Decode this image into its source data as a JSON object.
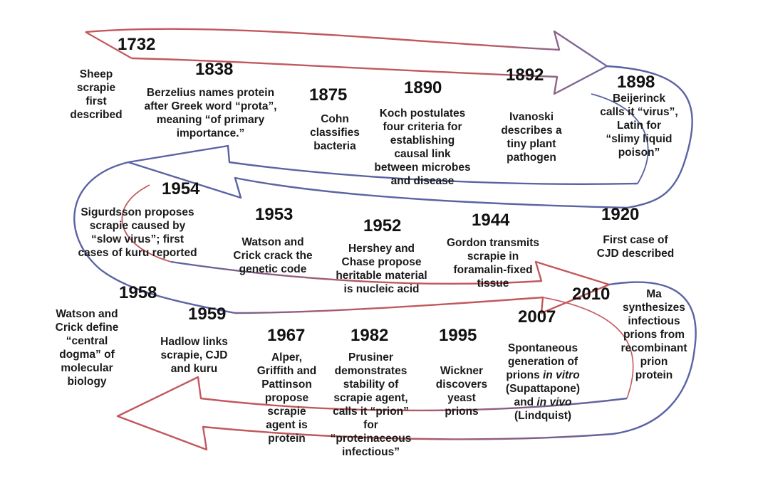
{
  "colors": {
    "arrow_red": "#c2585d",
    "arrow_blue": "#5a63a3",
    "text": "#1a1a1a"
  },
  "events": [
    {
      "id": "e1732",
      "year": "1732",
      "lines": [
        "Sheep",
        "scrapie",
        "first",
        "described"
      ]
    },
    {
      "id": "e1838",
      "year": "1838",
      "lines": [
        "Berzelius names protein",
        "after Greek word “prota”,",
        "meaning “of primary",
        "importance.”"
      ]
    },
    {
      "id": "e1875",
      "year": "1875",
      "lines": [
        "Cohn",
        "classifies",
        "bacteria"
      ]
    },
    {
      "id": "e1890",
      "year": "1890",
      "lines": [
        "Koch postulates",
        "four criteria for",
        "establishing",
        "causal link",
        "between microbes",
        "and disease"
      ]
    },
    {
      "id": "e1892",
      "year": "1892",
      "lines": [
        "Ivanoski",
        "describes a",
        "tiny plant",
        "pathogen"
      ]
    },
    {
      "id": "e1898",
      "year": "1898",
      "lines": [
        "Beijerinck",
        "calls it “virus”,",
        "Latin for",
        "“slimy liquid",
        "poison”"
      ]
    },
    {
      "id": "e1954",
      "year": "1954",
      "lines": [
        "Sigurdsson proposes",
        "scrapie caused by",
        "“slow virus”; first",
        "cases of kuru reported"
      ]
    },
    {
      "id": "e1953",
      "year": "1953",
      "lines": [
        "Watson and",
        "Crick crack the",
        "genetic code"
      ]
    },
    {
      "id": "e1952",
      "year": "1952",
      "lines": [
        "Hershey and",
        "Chase propose",
        "heritable material",
        "is nucleic acid"
      ]
    },
    {
      "id": "e1944",
      "year": "1944",
      "lines": [
        "Gordon transmits",
        "scrapie in",
        "foramalin-fixed",
        "tissue"
      ]
    },
    {
      "id": "e1920",
      "year": "1920",
      "lines": [
        "First case of",
        "CJD described"
      ]
    },
    {
      "id": "e1958",
      "year": "1958",
      "lines": [
        "Watson and",
        "Crick define",
        "“central",
        "dogma” of",
        "molecular",
        "biology"
      ]
    },
    {
      "id": "e1959",
      "year": "1959",
      "lines": [
        "Hadlow links",
        "scrapie, CJD",
        "and kuru"
      ]
    },
    {
      "id": "e1967",
      "year": "1967",
      "lines": [
        "Alper,",
        "Griffith and",
        "Pattinson",
        "propose",
        "scrapie",
        "agent is",
        "protein"
      ]
    },
    {
      "id": "e1982",
      "year": "1982",
      "lines": [
        "Prusiner",
        "demonstrates",
        "stability of",
        "scrapie agent,",
        "calls it “prion”",
        "for",
        "“proteinaceous",
        "infectious”"
      ]
    },
    {
      "id": "e1995",
      "year": "1995",
      "lines": [
        "Wickner",
        "discovers",
        "yeast",
        "prions"
      ]
    },
    {
      "id": "e2007",
      "year": "2007",
      "lines": [
        "Spontaneous",
        "generation of",
        "prions <i>in vitro</i>",
        "(Supattapone)",
        "and <i>in vivo</i>",
        "(Lindquist)"
      ]
    },
    {
      "id": "e2010",
      "year": "2010",
      "lines": [
        "Ma",
        "synthesizes",
        "infectious",
        "prions from",
        "recombinant",
        "prion",
        "protein"
      ]
    }
  ]
}
